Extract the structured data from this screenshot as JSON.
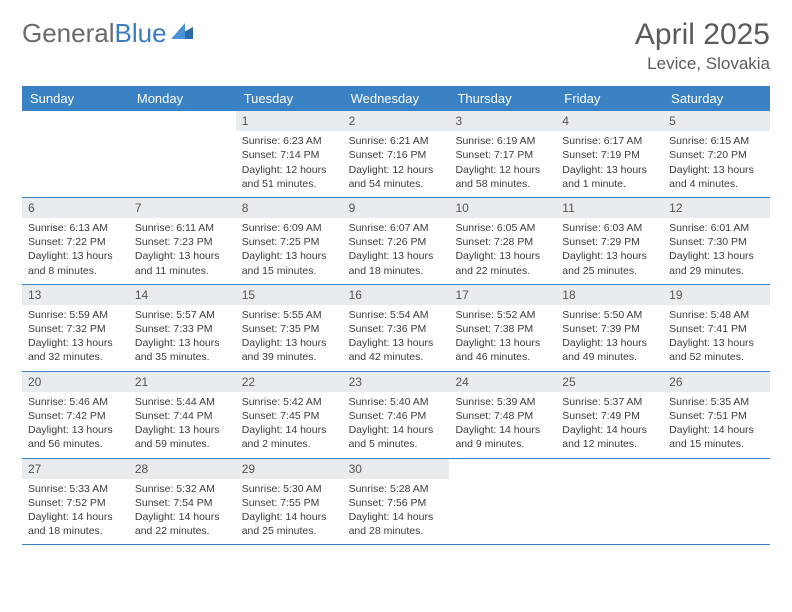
{
  "brand": {
    "name_a": "General",
    "name_b": "Blue"
  },
  "title": "April 2025",
  "location": "Levice, Slovakia",
  "colors": {
    "header_bg": "#3b82c4",
    "header_text": "#ffffff",
    "daynum_bg": "#e9ecef",
    "row_border": "#3b82c4",
    "body_text": "#3c3c3c",
    "title_text": "#5b5b5b",
    "logo_gray": "#6a6a6a",
    "logo_blue": "#3b7cc0"
  },
  "day_headers": [
    "Sunday",
    "Monday",
    "Tuesday",
    "Wednesday",
    "Thursday",
    "Friday",
    "Saturday"
  ],
  "weeks": [
    [
      {
        "blank": true
      },
      {
        "blank": true
      },
      {
        "n": "1",
        "sr": "Sunrise: 6:23 AM",
        "ss": "Sunset: 7:14 PM",
        "dl": "Daylight: 12 hours and 51 minutes."
      },
      {
        "n": "2",
        "sr": "Sunrise: 6:21 AM",
        "ss": "Sunset: 7:16 PM",
        "dl": "Daylight: 12 hours and 54 minutes."
      },
      {
        "n": "3",
        "sr": "Sunrise: 6:19 AM",
        "ss": "Sunset: 7:17 PM",
        "dl": "Daylight: 12 hours and 58 minutes."
      },
      {
        "n": "4",
        "sr": "Sunrise: 6:17 AM",
        "ss": "Sunset: 7:19 PM",
        "dl": "Daylight: 13 hours and 1 minute."
      },
      {
        "n": "5",
        "sr": "Sunrise: 6:15 AM",
        "ss": "Sunset: 7:20 PM",
        "dl": "Daylight: 13 hours and 4 minutes."
      }
    ],
    [
      {
        "n": "6",
        "sr": "Sunrise: 6:13 AM",
        "ss": "Sunset: 7:22 PM",
        "dl": "Daylight: 13 hours and 8 minutes."
      },
      {
        "n": "7",
        "sr": "Sunrise: 6:11 AM",
        "ss": "Sunset: 7:23 PM",
        "dl": "Daylight: 13 hours and 11 minutes."
      },
      {
        "n": "8",
        "sr": "Sunrise: 6:09 AM",
        "ss": "Sunset: 7:25 PM",
        "dl": "Daylight: 13 hours and 15 minutes."
      },
      {
        "n": "9",
        "sr": "Sunrise: 6:07 AM",
        "ss": "Sunset: 7:26 PM",
        "dl": "Daylight: 13 hours and 18 minutes."
      },
      {
        "n": "10",
        "sr": "Sunrise: 6:05 AM",
        "ss": "Sunset: 7:28 PM",
        "dl": "Daylight: 13 hours and 22 minutes."
      },
      {
        "n": "11",
        "sr": "Sunrise: 6:03 AM",
        "ss": "Sunset: 7:29 PM",
        "dl": "Daylight: 13 hours and 25 minutes."
      },
      {
        "n": "12",
        "sr": "Sunrise: 6:01 AM",
        "ss": "Sunset: 7:30 PM",
        "dl": "Daylight: 13 hours and 29 minutes."
      }
    ],
    [
      {
        "n": "13",
        "sr": "Sunrise: 5:59 AM",
        "ss": "Sunset: 7:32 PM",
        "dl": "Daylight: 13 hours and 32 minutes."
      },
      {
        "n": "14",
        "sr": "Sunrise: 5:57 AM",
        "ss": "Sunset: 7:33 PM",
        "dl": "Daylight: 13 hours and 35 minutes."
      },
      {
        "n": "15",
        "sr": "Sunrise: 5:55 AM",
        "ss": "Sunset: 7:35 PM",
        "dl": "Daylight: 13 hours and 39 minutes."
      },
      {
        "n": "16",
        "sr": "Sunrise: 5:54 AM",
        "ss": "Sunset: 7:36 PM",
        "dl": "Daylight: 13 hours and 42 minutes."
      },
      {
        "n": "17",
        "sr": "Sunrise: 5:52 AM",
        "ss": "Sunset: 7:38 PM",
        "dl": "Daylight: 13 hours and 46 minutes."
      },
      {
        "n": "18",
        "sr": "Sunrise: 5:50 AM",
        "ss": "Sunset: 7:39 PM",
        "dl": "Daylight: 13 hours and 49 minutes."
      },
      {
        "n": "19",
        "sr": "Sunrise: 5:48 AM",
        "ss": "Sunset: 7:41 PM",
        "dl": "Daylight: 13 hours and 52 minutes."
      }
    ],
    [
      {
        "n": "20",
        "sr": "Sunrise: 5:46 AM",
        "ss": "Sunset: 7:42 PM",
        "dl": "Daylight: 13 hours and 56 minutes."
      },
      {
        "n": "21",
        "sr": "Sunrise: 5:44 AM",
        "ss": "Sunset: 7:44 PM",
        "dl": "Daylight: 13 hours and 59 minutes."
      },
      {
        "n": "22",
        "sr": "Sunrise: 5:42 AM",
        "ss": "Sunset: 7:45 PM",
        "dl": "Daylight: 14 hours and 2 minutes."
      },
      {
        "n": "23",
        "sr": "Sunrise: 5:40 AM",
        "ss": "Sunset: 7:46 PM",
        "dl": "Daylight: 14 hours and 5 minutes."
      },
      {
        "n": "24",
        "sr": "Sunrise: 5:39 AM",
        "ss": "Sunset: 7:48 PM",
        "dl": "Daylight: 14 hours and 9 minutes."
      },
      {
        "n": "25",
        "sr": "Sunrise: 5:37 AM",
        "ss": "Sunset: 7:49 PM",
        "dl": "Daylight: 14 hours and 12 minutes."
      },
      {
        "n": "26",
        "sr": "Sunrise: 5:35 AM",
        "ss": "Sunset: 7:51 PM",
        "dl": "Daylight: 14 hours and 15 minutes."
      }
    ],
    [
      {
        "n": "27",
        "sr": "Sunrise: 5:33 AM",
        "ss": "Sunset: 7:52 PM",
        "dl": "Daylight: 14 hours and 18 minutes."
      },
      {
        "n": "28",
        "sr": "Sunrise: 5:32 AM",
        "ss": "Sunset: 7:54 PM",
        "dl": "Daylight: 14 hours and 22 minutes."
      },
      {
        "n": "29",
        "sr": "Sunrise: 5:30 AM",
        "ss": "Sunset: 7:55 PM",
        "dl": "Daylight: 14 hours and 25 minutes."
      },
      {
        "n": "30",
        "sr": "Sunrise: 5:28 AM",
        "ss": "Sunset: 7:56 PM",
        "dl": "Daylight: 14 hours and 28 minutes."
      },
      {
        "blank": true
      },
      {
        "blank": true
      },
      {
        "blank": true
      }
    ]
  ]
}
